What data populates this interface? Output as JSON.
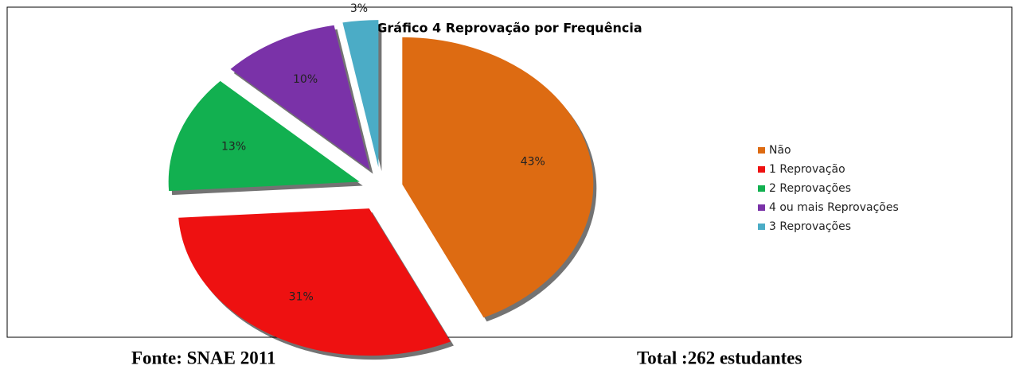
{
  "chart_data": {
    "type": "pie",
    "title": "Gráfico 4 Reprovação por Frequência",
    "categories": [
      "Não",
      "1 Reprovação",
      "2 Reprovações",
      "4 ou mais Reprovações",
      "3 Reprovações"
    ],
    "values": [
      43,
      31,
      13,
      10,
      3
    ],
    "value_labels": [
      "43%",
      "31%",
      "13%",
      "10%",
      "3%"
    ],
    "colors": [
      "#dd6b12",
      "#ee1111",
      "#12b050",
      "#7a32a8",
      "#4bacc6"
    ],
    "legend": "right"
  },
  "footer": {
    "source": "Fonte: SNAE 2011",
    "total": "Total :262 estudantes"
  }
}
